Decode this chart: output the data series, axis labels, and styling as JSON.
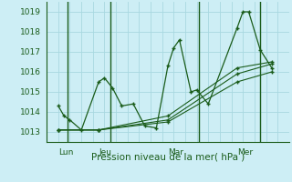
{
  "xlabel": "Pression niveau de la mer( hPa )",
  "bg_color": "#cdeef5",
  "grid_color": "#a8d8e0",
  "line_color": "#1a5c1a",
  "ylim": [
    1012.5,
    1019.5
  ],
  "xlim": [
    0,
    21
  ],
  "day_labels": [
    "Lun",
    "Jeu",
    "Mar",
    "Mer"
  ],
  "day_positions": [
    1,
    4.5,
    10.5,
    16.5
  ],
  "day_vlines": [
    1.8,
    5.5,
    13.2,
    18.5
  ],
  "yticks": [
    1013,
    1014,
    1015,
    1016,
    1017,
    1018,
    1019
  ],
  "series1_x": [
    1.0,
    1.5,
    2.0,
    3.0,
    4.5,
    5.0,
    5.7,
    6.5,
    7.5,
    8.5,
    9.5,
    10.5,
    11.0,
    11.5,
    12.5,
    13.0,
    14.0,
    16.5,
    17.0,
    17.5,
    18.5,
    19.5
  ],
  "series1_y": [
    1014.3,
    1013.8,
    1013.6,
    1013.1,
    1015.5,
    1015.7,
    1015.2,
    1014.3,
    1014.4,
    1013.3,
    1013.2,
    1016.3,
    1017.2,
    1017.6,
    1015.0,
    1015.1,
    1014.4,
    1018.2,
    1019.0,
    1019.0,
    1017.1,
    1016.2
  ],
  "series2_x": [
    1.0,
    4.5,
    10.5,
    16.5,
    19.5
  ],
  "series2_y": [
    1013.1,
    1013.1,
    1013.6,
    1015.9,
    1016.4
  ],
  "series3_x": [
    1.0,
    4.5,
    10.5,
    16.5,
    19.5
  ],
  "series3_y": [
    1013.1,
    1013.1,
    1013.8,
    1016.2,
    1016.5
  ],
  "series4_x": [
    1.0,
    4.5,
    10.5,
    16.5,
    19.5
  ],
  "series4_y": [
    1013.1,
    1013.1,
    1013.5,
    1015.5,
    1016.0
  ]
}
